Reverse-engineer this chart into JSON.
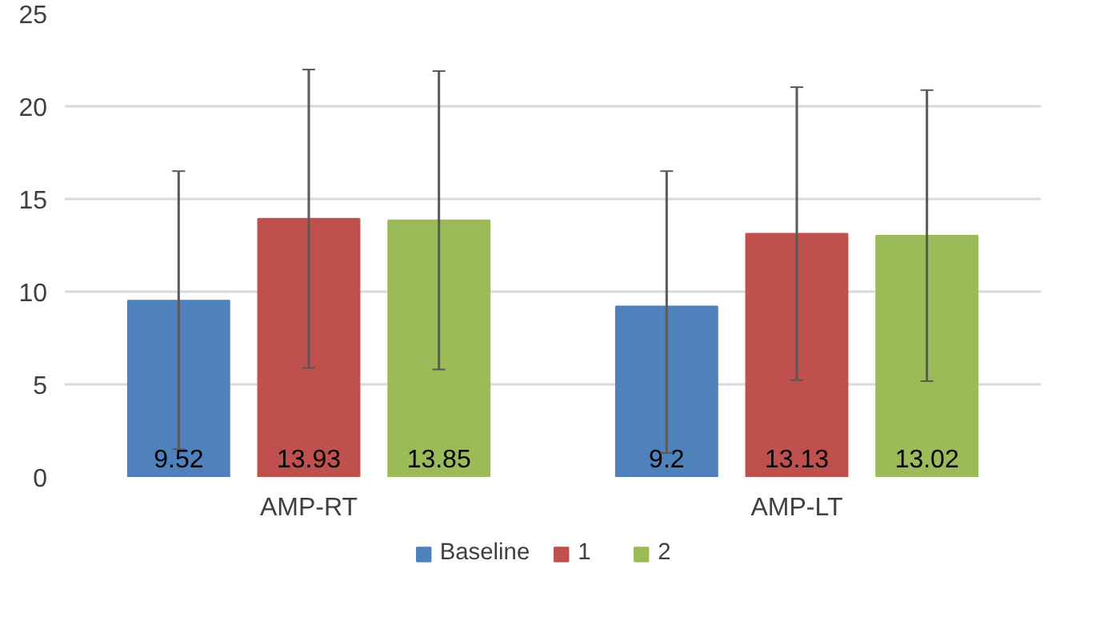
{
  "chart_data": {
    "type": "bar",
    "categories": [
      "AMP-RT",
      "AMP-LT"
    ],
    "series": [
      {
        "name": "Baseline",
        "color": "#4f81bd",
        "values": [
          9.52,
          9.2
        ],
        "errors": [
          [
            1.5,
            16.5
          ],
          [
            1.3,
            16.5
          ]
        ]
      },
      {
        "name": "1",
        "color": "#c0504d",
        "values": [
          13.93,
          13.13
        ],
        "errors": [
          8.05,
          7.9
        ]
      },
      {
        "name": "2",
        "color": "#9bbb59",
        "values": [
          13.85,
          13.02
        ],
        "errors": [
          8.05,
          7.85
        ]
      }
    ],
    "ylim": [
      0,
      25
    ],
    "yticks": [
      0,
      5,
      10,
      15,
      20,
      25
    ],
    "grid": "y",
    "legend": "bottom",
    "data_labels": true
  }
}
